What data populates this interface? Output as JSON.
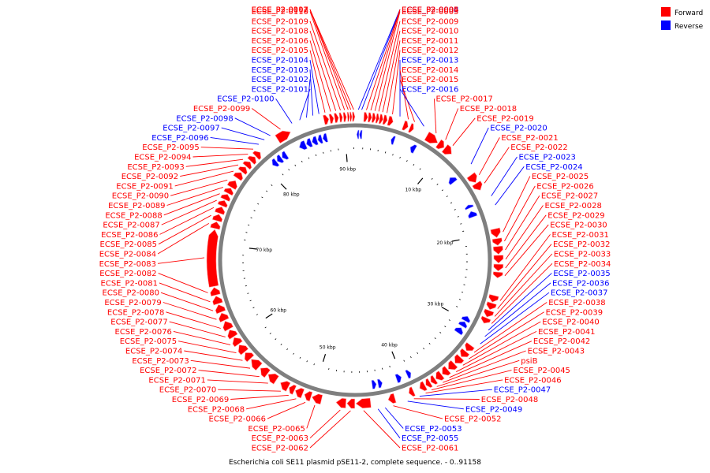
{
  "chart_data": {
    "type": "circular-genome-map",
    "genome_length_bp": 91158,
    "caption": "Escherichia coli SE11 plasmid pSE11-2, complete sequence. - 0..91158",
    "legend": [
      {
        "label": "Forward",
        "color": "#ff0000"
      },
      {
        "label": "Reverse",
        "color": "#0000ff"
      }
    ],
    "ruler_labels": [
      "10 kbp",
      "20 kbp",
      "30 kbp",
      "40 kbp",
      "50 kbp",
      "60 kbp",
      "70 kbp",
      "80 kbp",
      "90 kbp"
    ],
    "genes": [
      {
        "name": "ECSE_P2-0007",
        "strand": "+",
        "start": 90900,
        "end": 91158
      },
      {
        "name": "ECSE_P2-0008",
        "strand": "-",
        "start": 500,
        "end": 800
      },
      {
        "name": "ECSE_P2-0006",
        "strand": "-",
        "start": 200,
        "end": 450
      },
      {
        "name": "ECSE_P2-0005",
        "strand": "+",
        "start": 900,
        "end": 1300
      },
      {
        "name": "ECSE_P2-0004",
        "strand": "+",
        "start": 1350,
        "end": 1700
      },
      {
        "name": "ECSE_P2-0003",
        "strand": "+",
        "start": 1750,
        "end": 2100
      },
      {
        "name": "ECSE_P2-0011",
        "strand": "+",
        "start": 2900,
        "end": 3300
      },
      {
        "name": "ECSE_P2-0010",
        "strand": "+",
        "start": 2500,
        "end": 2850
      },
      {
        "name": "ECSE_P2-0009",
        "strand": "+",
        "start": 2150,
        "end": 2450
      },
      {
        "name": "ECSE_P2-0012",
        "strand": "+",
        "start": 3400,
        "end": 3900
      },
      {
        "name": "ECSE_P2-0013",
        "strand": "-",
        "start": 4200,
        "end": 4600
      },
      {
        "name": "ECSE_P2-0014",
        "strand": "+",
        "start": 5000,
        "end": 5500
      },
      {
        "name": "ECSE_P2-0015",
        "strand": "+",
        "start": 5700,
        "end": 6100
      },
      {
        "name": "ECSE_P2-0016",
        "strand": "-",
        "start": 6600,
        "end": 7200
      },
      {
        "name": "ECSE_P2-0017",
        "strand": "+",
        "start": 7600,
        "end": 8900
      },
      {
        "name": "ECSE_P2-0018",
        "strand": "+",
        "start": 9000,
        "end": 9700
      },
      {
        "name": "ECSE_P2-0019",
        "strand": "+",
        "start": 9800,
        "end": 10700
      },
      {
        "name": "ECSE_P2-0020",
        "strand": "-",
        "start": 12400,
        "end": 13100
      },
      {
        "name": "ECSE_P2-0021",
        "strand": "+",
        "start": 13600,
        "end": 14500
      },
      {
        "name": "ECSE_P2-0022",
        "strand": "+",
        "start": 14600,
        "end": 15400
      },
      {
        "name": "ECSE_P2-0023",
        "strand": "-",
        "start": 16200,
        "end": 16600
      },
      {
        "name": "ECSE_P2-0024",
        "strand": "-",
        "start": 17000,
        "end": 17700
      },
      {
        "name": "ECSE_P2-0025",
        "strand": "+",
        "start": 19600,
        "end": 20500
      },
      {
        "name": "ECSE_P2-0026",
        "strand": "+",
        "start": 20600,
        "end": 21300
      },
      {
        "name": "ECSE_P2-0027",
        "strand": "+",
        "start": 21400,
        "end": 22200
      },
      {
        "name": "ECSE_P2-0028",
        "strand": "+",
        "start": 22300,
        "end": 23100
      },
      {
        "name": "ECSE_P2-0029",
        "strand": "+",
        "start": 23200,
        "end": 23900
      },
      {
        "name": "ECSE_P2-0030",
        "strand": "+",
        "start": 24000,
        "end": 24600
      },
      {
        "name": "ECSE_P2-0031",
        "strand": "+",
        "start": 26400,
        "end": 27100
      },
      {
        "name": "ECSE_P2-0032",
        "strand": "+",
        "start": 27200,
        "end": 27900
      },
      {
        "name": "ECSE_P2-0033",
        "strand": "+",
        "start": 28000,
        "end": 28700
      },
      {
        "name": "ECSE_P2-0034",
        "strand": "+",
        "start": 28800,
        "end": 29400
      },
      {
        "name": "ECSE_P2-0035",
        "strand": "-",
        "start": 29500,
        "end": 30100
      },
      {
        "name": "ECSE_P2-0036",
        "strand": "-",
        "start": 30200,
        "end": 30800
      },
      {
        "name": "ECSE_P2-0037",
        "strand": "-",
        "start": 31000,
        "end": 31700
      },
      {
        "name": "ECSE_P2-0038",
        "strand": "+",
        "start": 32000,
        "end": 32700
      },
      {
        "name": "ECSE_P2-0039",
        "strand": "+",
        "start": 32800,
        "end": 33500
      },
      {
        "name": "ECSE_P2-0040",
        "strand": "+",
        "start": 33600,
        "end": 34400
      },
      {
        "name": "ECSE_P2-0041",
        "strand": "+",
        "start": 34500,
        "end": 35300
      },
      {
        "name": "ECSE_P2-0042",
        "strand": "+",
        "start": 35400,
        "end": 36100
      },
      {
        "name": "ECSE_P2-0043",
        "strand": "+",
        "start": 36200,
        "end": 36900
      },
      {
        "name": "psiB",
        "strand": "+",
        "start": 37000,
        "end": 37500
      },
      {
        "name": "ECSE_P2-0045",
        "strand": "+",
        "start": 37600,
        "end": 38100
      },
      {
        "name": "ECSE_P2-0046",
        "strand": "+",
        "start": 38200,
        "end": 38800
      },
      {
        "name": "ECSE_P2-0047",
        "strand": "-",
        "start": 38900,
        "end": 39400
      },
      {
        "name": "ECSE_P2-0048",
        "strand": "+",
        "start": 39500,
        "end": 40000
      },
      {
        "name": "ECSE_P2-0049",
        "strand": "-",
        "start": 40100,
        "end": 40700
      },
      {
        "name": "ECSE_P2-0052",
        "strand": "+",
        "start": 41500,
        "end": 42200
      },
      {
        "name": "ECSE_P2-0053",
        "strand": "-",
        "start": 42400,
        "end": 42900
      },
      {
        "name": "ECSE_P2-0055",
        "strand": "-",
        "start": 43100,
        "end": 43600
      },
      {
        "name": "ECSE_P2-0061",
        "strand": "+",
        "start": 44000,
        "end": 45500
      },
      {
        "name": "ECSE_P2-0062",
        "strand": "+",
        "start": 45600,
        "end": 46400
      },
      {
        "name": "ECSE_P2-0063",
        "strand": "+",
        "start": 46500,
        "end": 47500
      },
      {
        "name": "ECSE_P2-0065",
        "strand": "+",
        "start": 49000,
        "end": 50000
      },
      {
        "name": "ECSE_P2-0066",
        "strand": "+",
        "start": 50100,
        "end": 50800
      },
      {
        "name": "ECSE_P2-0068",
        "strand": "+",
        "start": 51000,
        "end": 51800
      },
      {
        "name": "ECSE_P2-0069",
        "strand": "+",
        "start": 51900,
        "end": 52500
      },
      {
        "name": "ECSE_P2-0070",
        "strand": "+",
        "start": 52600,
        "end": 53500
      },
      {
        "name": "ECSE_P2-0071",
        "strand": "+",
        "start": 54000,
        "end": 55000
      },
      {
        "name": "ECSE_P2-0072",
        "strand": "+",
        "start": 55100,
        "end": 56000
      },
      {
        "name": "ECSE_P2-0073",
        "strand": "+",
        "start": 56200,
        "end": 57300
      },
      {
        "name": "ECSE_P2-0074",
        "strand": "+",
        "start": 57400,
        "end": 58200
      },
      {
        "name": "ECSE_P2-0075",
        "strand": "+",
        "start": 58300,
        "end": 59200
      },
      {
        "name": "ECSE_P2-0076",
        "strand": "+",
        "start": 59300,
        "end": 60100
      },
      {
        "name": "ECSE_P2-0077",
        "strand": "+",
        "start": 60200,
        "end": 61000
      },
      {
        "name": "ECSE_P2-0078",
        "strand": "+",
        "start": 61100,
        "end": 62000
      },
      {
        "name": "ECSE_P2-0079",
        "strand": "+",
        "start": 62100,
        "end": 62900
      },
      {
        "name": "ECSE_P2-0080",
        "strand": "+",
        "start": 63000,
        "end": 63800
      },
      {
        "name": "ECSE_P2-0081",
        "strand": "+",
        "start": 63900,
        "end": 64700
      },
      {
        "name": "ECSE_P2-0082",
        "strand": "+",
        "start": 64800,
        "end": 65600
      },
      {
        "name": "ECSE_P2-0083",
        "strand": "+",
        "start": 65700,
        "end": 71500
      },
      {
        "name": "ECSE_P2-0084",
        "strand": "+",
        "start": 71600,
        "end": 72300
      },
      {
        "name": "ECSE_P2-0085",
        "strand": "+",
        "start": 72400,
        "end": 73100
      },
      {
        "name": "ECSE_P2-0086",
        "strand": "+",
        "start": 73200,
        "end": 73900
      },
      {
        "name": "ECSE_P2-0087",
        "strand": "+",
        "start": 74000,
        "end": 74600
      },
      {
        "name": "ECSE_P2-0088",
        "strand": "+",
        "start": 74700,
        "end": 75300
      },
      {
        "name": "ECSE_P2-0089",
        "strand": "+",
        "start": 75400,
        "end": 76000
      },
      {
        "name": "ECSE_P2-0090",
        "strand": "+",
        "start": 76100,
        "end": 76900
      },
      {
        "name": "ECSE_P2-0091",
        "strand": "+",
        "start": 77200,
        "end": 77900
      },
      {
        "name": "ECSE_P2-0092",
        "strand": "+",
        "start": 78000,
        "end": 78600
      },
      {
        "name": "ECSE_P2-0093",
        "strand": "+",
        "start": 78700,
        "end": 79300
      },
      {
        "name": "ECSE_P2-0094",
        "strand": "+",
        "start": 79400,
        "end": 80000
      },
      {
        "name": "ECSE_P2-0095",
        "strand": "+",
        "start": 80100,
        "end": 80700
      },
      {
        "name": "ECSE_P2-0096",
        "strand": "-",
        "start": 80800,
        "end": 81400
      },
      {
        "name": "ECSE_P2-0097",
        "strand": "-",
        "start": 81500,
        "end": 82100
      },
      {
        "name": "ECSE_P2-0098",
        "strand": "-",
        "start": 82200,
        "end": 82800
      },
      {
        "name": "ECSE_P2-0099",
        "strand": "+",
        "start": 82900,
        "end": 84400
      },
      {
        "name": "ECSE_P2-0100",
        "strand": "-",
        "start": 84500,
        "end": 85300
      },
      {
        "name": "ECSE_P2-0101",
        "strand": "-",
        "start": 85400,
        "end": 86000
      },
      {
        "name": "ECSE_P2-0102",
        "strand": "-",
        "start": 86100,
        "end": 86700
      },
      {
        "name": "ECSE_P2-0103",
        "strand": "-",
        "start": 86800,
        "end": 87300
      },
      {
        "name": "ECSE_P2-0104",
        "strand": "-",
        "start": 87400,
        "end": 87900
      },
      {
        "name": "ECSE_P2-0105",
        "strand": "+",
        "start": 88000,
        "end": 88500
      },
      {
        "name": "ECSE_P2-0106",
        "strand": "+",
        "start": 88600,
        "end": 89000
      },
      {
        "name": "ECSE_P2-0108",
        "strand": "+",
        "start": 89100,
        "end": 89500
      },
      {
        "name": "ECSE_P2-0109",
        "strand": "+",
        "start": 89600,
        "end": 89900
      },
      {
        "name": "ECSE_P2-0110",
        "strand": "+",
        "start": 90000,
        "end": 90300
      },
      {
        "name": "ECSE_P2-0111",
        "strand": "+",
        "start": 90400,
        "end": 90600
      },
      {
        "name": "ECSE_P2-0112",
        "strand": "+",
        "start": 90650,
        "end": 90850
      }
    ]
  }
}
